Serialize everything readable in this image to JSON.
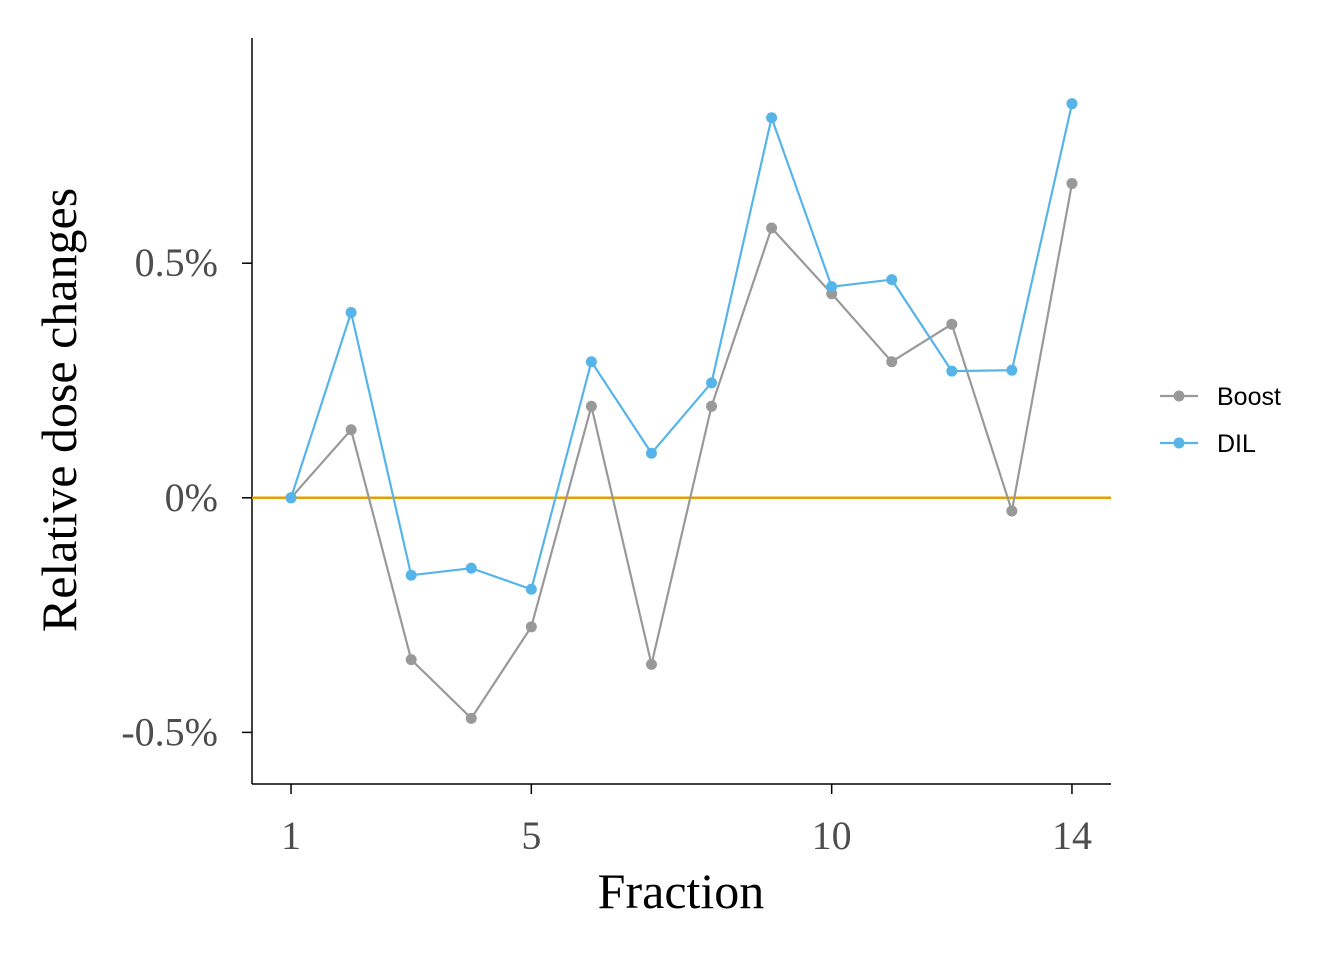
{
  "chart_data": {
    "type": "line",
    "title": "",
    "xlabel": "Fraction",
    "ylabel": "Relative dose changes",
    "x": [
      1,
      2,
      3,
      4,
      5,
      6,
      7,
      8,
      9,
      10,
      11,
      12,
      13,
      14
    ],
    "x_ticks": [
      1,
      5,
      10,
      14
    ],
    "x_tick_labels": [
      "1",
      "5",
      "10",
      "14"
    ],
    "xlim": [
      0.35,
      14.65
    ],
    "y_ticks": [
      -0.5,
      0,
      0.5
    ],
    "y_tick_labels": [
      "-0.5%",
      "0%",
      "0.5%"
    ],
    "ylim": [
      -0.61,
      0.98
    ],
    "y_units": "%",
    "series": [
      {
        "name": "Boost",
        "color": "#999999",
        "values": [
          0.0,
          0.145,
          -0.345,
          -0.47,
          -0.275,
          0.195,
          -0.355,
          0.195,
          0.575,
          0.435,
          0.29,
          0.37,
          -0.028,
          0.67
        ]
      },
      {
        "name": "DIL",
        "color": "#56B4E9",
        "values": [
          0.0,
          0.395,
          -0.165,
          -0.15,
          -0.195,
          0.29,
          0.095,
          0.245,
          0.81,
          0.45,
          0.465,
          0.27,
          0.272,
          0.84
        ]
      }
    ],
    "reference_line": {
      "y": 0,
      "color": "#E69F00"
    },
    "grid": false,
    "legend": {
      "position": "right",
      "entries": [
        "Boost",
        "DIL"
      ]
    }
  }
}
